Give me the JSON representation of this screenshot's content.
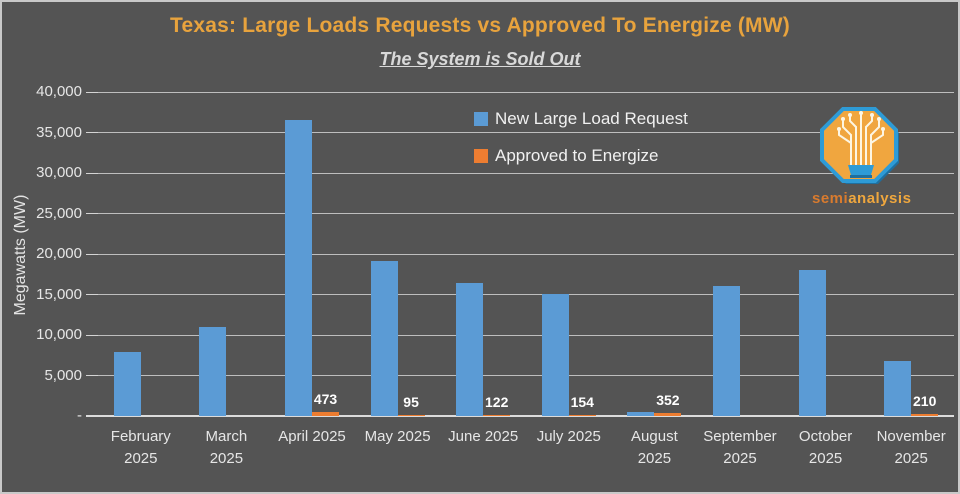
{
  "window": {
    "background_color": "#545454",
    "border_color": "#c9c9c9"
  },
  "header": {
    "title": "Texas: Large Loads Requests vs Approved To Energize (MW)",
    "title_color": "#E8A33D",
    "subtitle": "The System is Sold Out",
    "subtitle_color": "#d9d9d9"
  },
  "logo": {
    "icon": "semianalysis-circuit-tree-octagon-icon",
    "wordmark_semi": "semi",
    "wordmark_analysis": "analysis",
    "semi_color": "#d97b2e",
    "analysis_color": "#efa73e",
    "octagon_fill": "#F0A63F",
    "octagon_border": "#2E9BD6"
  },
  "chart_data": {
    "type": "bar",
    "title": "Texas: Large Loads Requests vs Approved To Energize (MW)",
    "subtitle": "The System is Sold Out",
    "xlabel": "",
    "ylabel": "Megawatts (MW)",
    "ylim": [
      0,
      40000
    ],
    "ytick_interval": 5000,
    "ytick_labels_bottom_to_top": [
      "-",
      "5,000",
      "10,000",
      "15,000",
      "20,000",
      "25,000",
      "30,000",
      "35,000",
      "40,000"
    ],
    "grid": true,
    "legend_position": "top-center-inside",
    "categories": [
      "February 2025",
      "March 2025",
      "April 2025",
      "May 2025",
      "June 2025",
      "July 2025",
      "August 2025",
      "September 2025",
      "October 2025",
      "November 2025"
    ],
    "category_labels": [
      "February\n2025",
      "March\n2025",
      "April 2025",
      "May 2025",
      "June 2025",
      "July 2025",
      "August\n2025",
      "September\n2025",
      "October\n2025",
      "November\n2025"
    ],
    "series": [
      {
        "name": "New Large Load Request",
        "color": "#5B9BD5",
        "values": [
          7900,
          11000,
          36600,
          19100,
          16400,
          15000,
          500,
          16000,
          18000,
          6800
        ],
        "data_labels": [
          "",
          "",
          "",
          "",
          "",
          "",
          "",
          "",
          "",
          ""
        ]
      },
      {
        "name": "Approved to Energize",
        "color": "#ED7D31",
        "values": [
          0,
          0,
          473,
          95,
          122,
          154,
          352,
          0,
          0,
          210
        ],
        "data_labels": [
          "",
          "",
          "473",
          "95",
          "122",
          "154",
          "352",
          "",
          "",
          "210"
        ]
      }
    ]
  }
}
